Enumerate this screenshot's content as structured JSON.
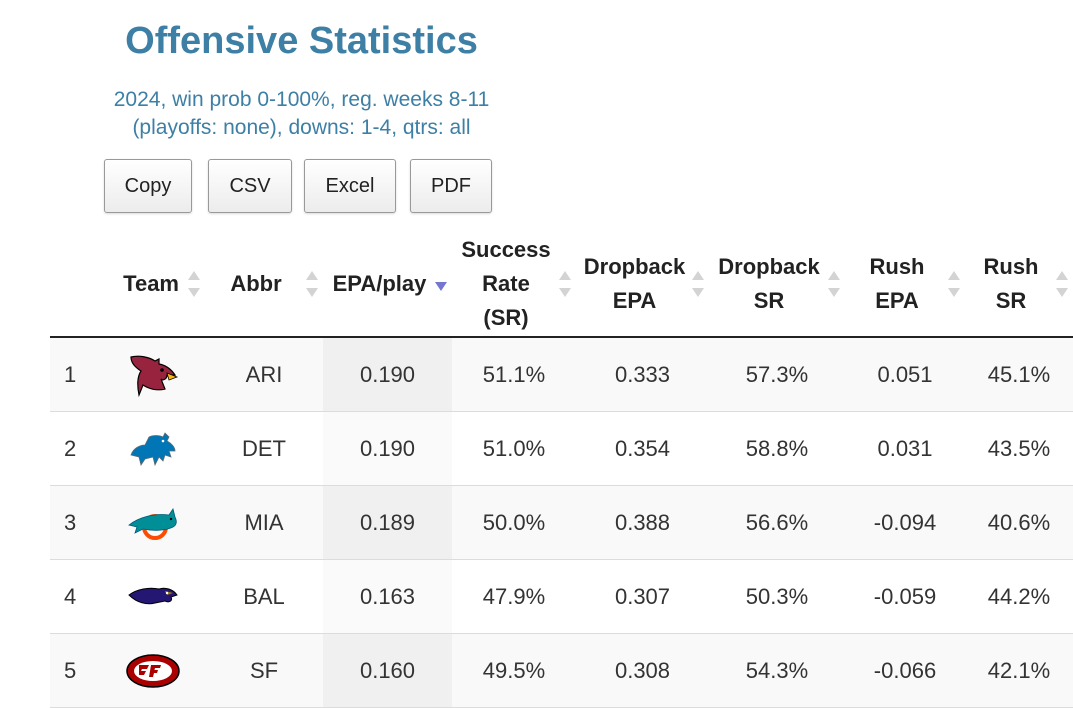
{
  "title": "Offensive Statistics",
  "subtitle_line1": "2024, win prob 0-100%, reg. weeks 8-11",
  "subtitle_line2": "(playoffs: none), downs: 1-4, qtrs: all",
  "buttons": {
    "copy": "Copy",
    "csv": "CSV",
    "excel": "Excel",
    "pdf": "PDF"
  },
  "columns": {
    "team": "Team",
    "abbr": "Abbr",
    "epa_play": "EPA/play",
    "sr_1": "Success",
    "sr_2": "Rate",
    "sr_3": "(SR)",
    "db_epa_1": "Dropback",
    "db_epa_2": "EPA",
    "db_sr_1": "Dropback",
    "db_sr_2": "SR",
    "rush_epa_1": "Rush",
    "rush_epa_2": "EPA",
    "rush_sr_1": "Rush",
    "rush_sr_2": "SR"
  },
  "sorted_column": "EPA/play",
  "sort_direction": "descending",
  "accent_color": "#3d7fa5",
  "rows": [
    {
      "rank": "1",
      "logo": "cardinals-logo-icon",
      "abbr": "ARI",
      "epa_play": "0.190",
      "sr": "51.1%",
      "db_epa": "0.333",
      "db_sr": "57.3%",
      "rush_epa": "0.051",
      "rush_sr": "45.1%"
    },
    {
      "rank": "2",
      "logo": "lions-logo-icon",
      "abbr": "DET",
      "epa_play": "0.190",
      "sr": "51.0%",
      "db_epa": "0.354",
      "db_sr": "58.8%",
      "rush_epa": "0.031",
      "rush_sr": "43.5%"
    },
    {
      "rank": "3",
      "logo": "dolphins-logo-icon",
      "abbr": "MIA",
      "epa_play": "0.189",
      "sr": "50.0%",
      "db_epa": "0.388",
      "db_sr": "56.6%",
      "rush_epa": "-0.094",
      "rush_sr": "40.6%"
    },
    {
      "rank": "4",
      "logo": "ravens-logo-icon",
      "abbr": "BAL",
      "epa_play": "0.163",
      "sr": "47.9%",
      "db_epa": "0.307",
      "db_sr": "50.3%",
      "rush_epa": "-0.059",
      "rush_sr": "44.2%"
    },
    {
      "rank": "5",
      "logo": "49ers-logo-icon",
      "abbr": "SF",
      "epa_play": "0.160",
      "sr": "49.5%",
      "db_epa": "0.308",
      "db_sr": "54.3%",
      "rush_epa": "-0.066",
      "rush_sr": "42.1%"
    }
  ]
}
